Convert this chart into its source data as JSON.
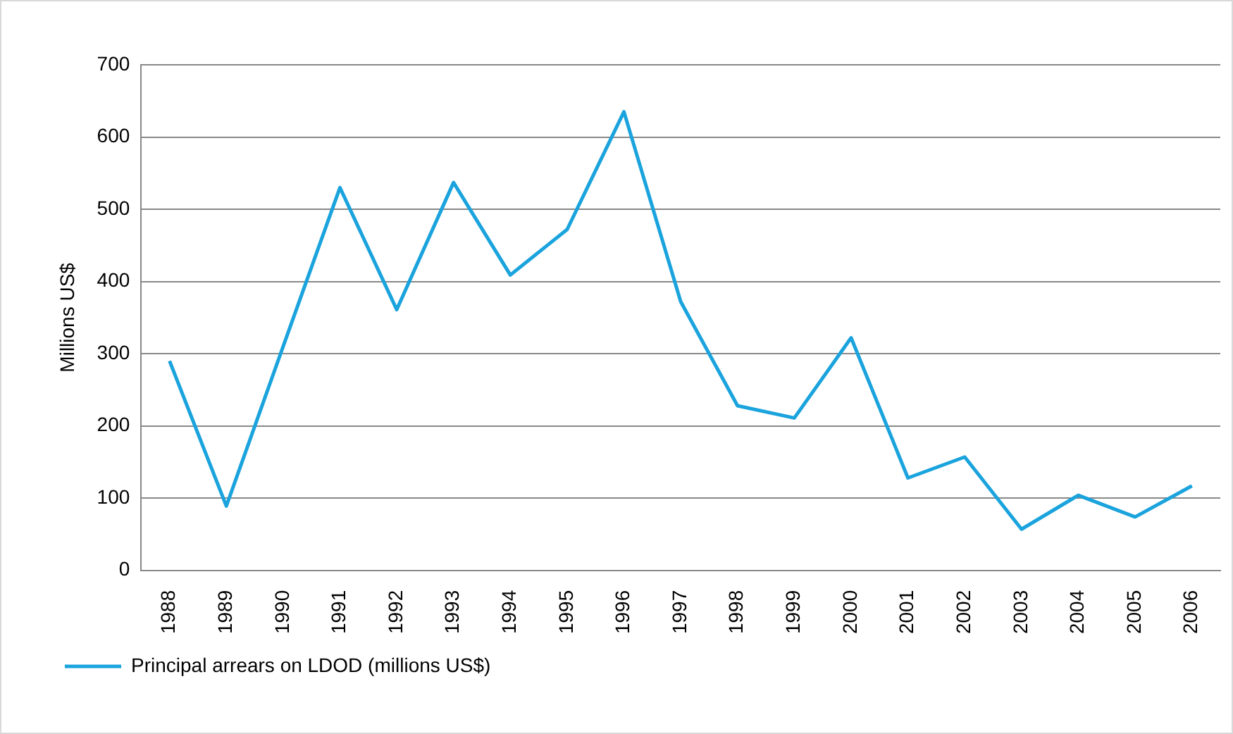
{
  "chart_data": {
    "type": "line",
    "ylabel": "Millions US$",
    "categories": [
      "1988",
      "1989",
      "1990",
      "1991",
      "1992",
      "1993",
      "1994",
      "1995",
      "1996",
      "1997",
      "1998",
      "1999",
      "2000",
      "2001",
      "2002",
      "2003",
      "2004",
      "2005",
      "2006"
    ],
    "series": [
      {
        "name": "Principal arrears on LDOD (millions US$)",
        "color": "#1aa3dd",
        "values": [
          290,
          89,
          310,
          530,
          361,
          537,
          409,
          472,
          635,
          372,
          228,
          211,
          322,
          128,
          157,
          57,
          104,
          74,
          117
        ]
      }
    ],
    "ylim": [
      0,
      700
    ],
    "yticks": [
      0,
      100,
      200,
      300,
      400,
      500,
      600,
      700
    ],
    "grid": "y",
    "legend": "bottom left",
    "marker": "none",
    "line_style": "solid"
  }
}
